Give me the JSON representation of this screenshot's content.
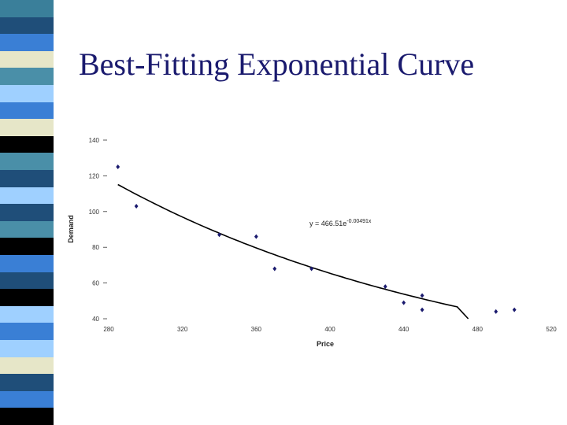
{
  "slide": {
    "title": "Best-Fitting Exponential Curve",
    "stripe_colors": [
      "#3a7f9a",
      "#1f4e79",
      "#3a7fd5",
      "#e6e6c8",
      "#4a8fa8",
      "#9fd0ff",
      "#3a7fd5",
      "#e6e6c8",
      "#000000",
      "#4a8fa8",
      "#1f4e79",
      "#9fd0ff",
      "#1f4e79",
      "#4a8fa8",
      "#000000",
      "#3a7fd5",
      "#1f4e79",
      "#000000",
      "#9fd0ff",
      "#3a7fd5",
      "#9fd0ff",
      "#e6e6c8",
      "#1f4e79",
      "#3a7fd5",
      "#000000"
    ]
  },
  "chart_data": {
    "type": "scatter",
    "xlabel": "Price",
    "ylabel": "Demand",
    "xlim": [
      280,
      520
    ],
    "ylim": [
      40,
      140
    ],
    "xticks": [
      280,
      320,
      360,
      400,
      440,
      480,
      520
    ],
    "yticks": [
      40,
      60,
      80,
      100,
      120,
      140
    ],
    "points": [
      {
        "x": 285,
        "y": 125
      },
      {
        "x": 295,
        "y": 103
      },
      {
        "x": 340,
        "y": 87
      },
      {
        "x": 360,
        "y": 86
      },
      {
        "x": 370,
        "y": 68
      },
      {
        "x": 390,
        "y": 68
      },
      {
        "x": 430,
        "y": 58
      },
      {
        "x": 440,
        "y": 49
      },
      {
        "x": 450,
        "y": 45
      },
      {
        "x": 450,
        "y": 53
      },
      {
        "x": 490,
        "y": 44
      },
      {
        "x": 500,
        "y": 45
      }
    ],
    "trendline": {
      "type": "exponential",
      "a": 466.51,
      "b": -0.00491,
      "label": "y = 466.51e-0.00491x"
    },
    "marker_color": "#1a1a6e",
    "grid": false,
    "legend": "none"
  }
}
